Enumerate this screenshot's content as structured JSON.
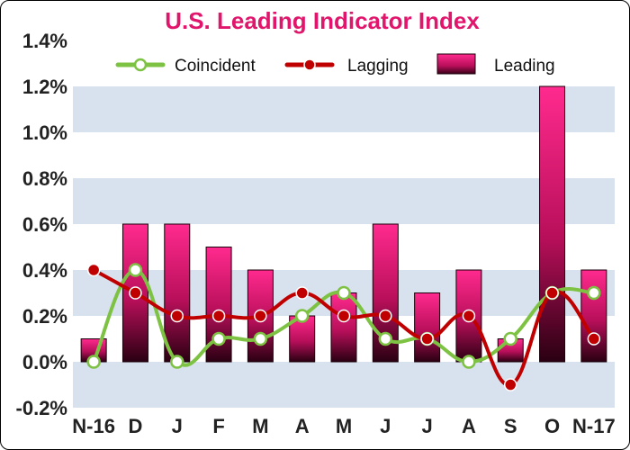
{
  "chart_data": {
    "type": "bar+line",
    "title": "U.S. Leading Indicator Index",
    "categories": [
      "N-16",
      "D",
      "J",
      "F",
      "M",
      "A",
      "M",
      "J",
      "J",
      "A",
      "S",
      "O",
      "N-17"
    ],
    "ylim": [
      -0.2,
      1.4
    ],
    "y_ticks": [
      "-0.2%",
      "0.0%",
      "0.2%",
      "0.4%",
      "0.6%",
      "0.8%",
      "1.0%",
      "1.2%",
      "1.4%"
    ],
    "grid": "alternating horizontal bands",
    "legend_position": "top-center",
    "series": [
      {
        "name": "Coincident",
        "kind": "line",
        "color": "#7dc242",
        "values": [
          0.0,
          0.4,
          0.0,
          0.1,
          0.1,
          0.2,
          0.3,
          0.1,
          0.1,
          0.0,
          0.1,
          0.3,
          0.3
        ]
      },
      {
        "name": "Lagging",
        "kind": "line",
        "color": "#c00000",
        "values": [
          0.4,
          0.3,
          0.2,
          0.2,
          0.2,
          0.3,
          0.2,
          0.2,
          0.1,
          0.2,
          -0.1,
          0.3,
          0.1
        ]
      },
      {
        "name": "Leading",
        "kind": "bar",
        "color": "#e8157a",
        "values": [
          0.1,
          0.6,
          0.6,
          0.5,
          0.4,
          0.2,
          0.3,
          0.6,
          0.3,
          0.4,
          0.1,
          1.2,
          0.4
        ]
      }
    ]
  }
}
